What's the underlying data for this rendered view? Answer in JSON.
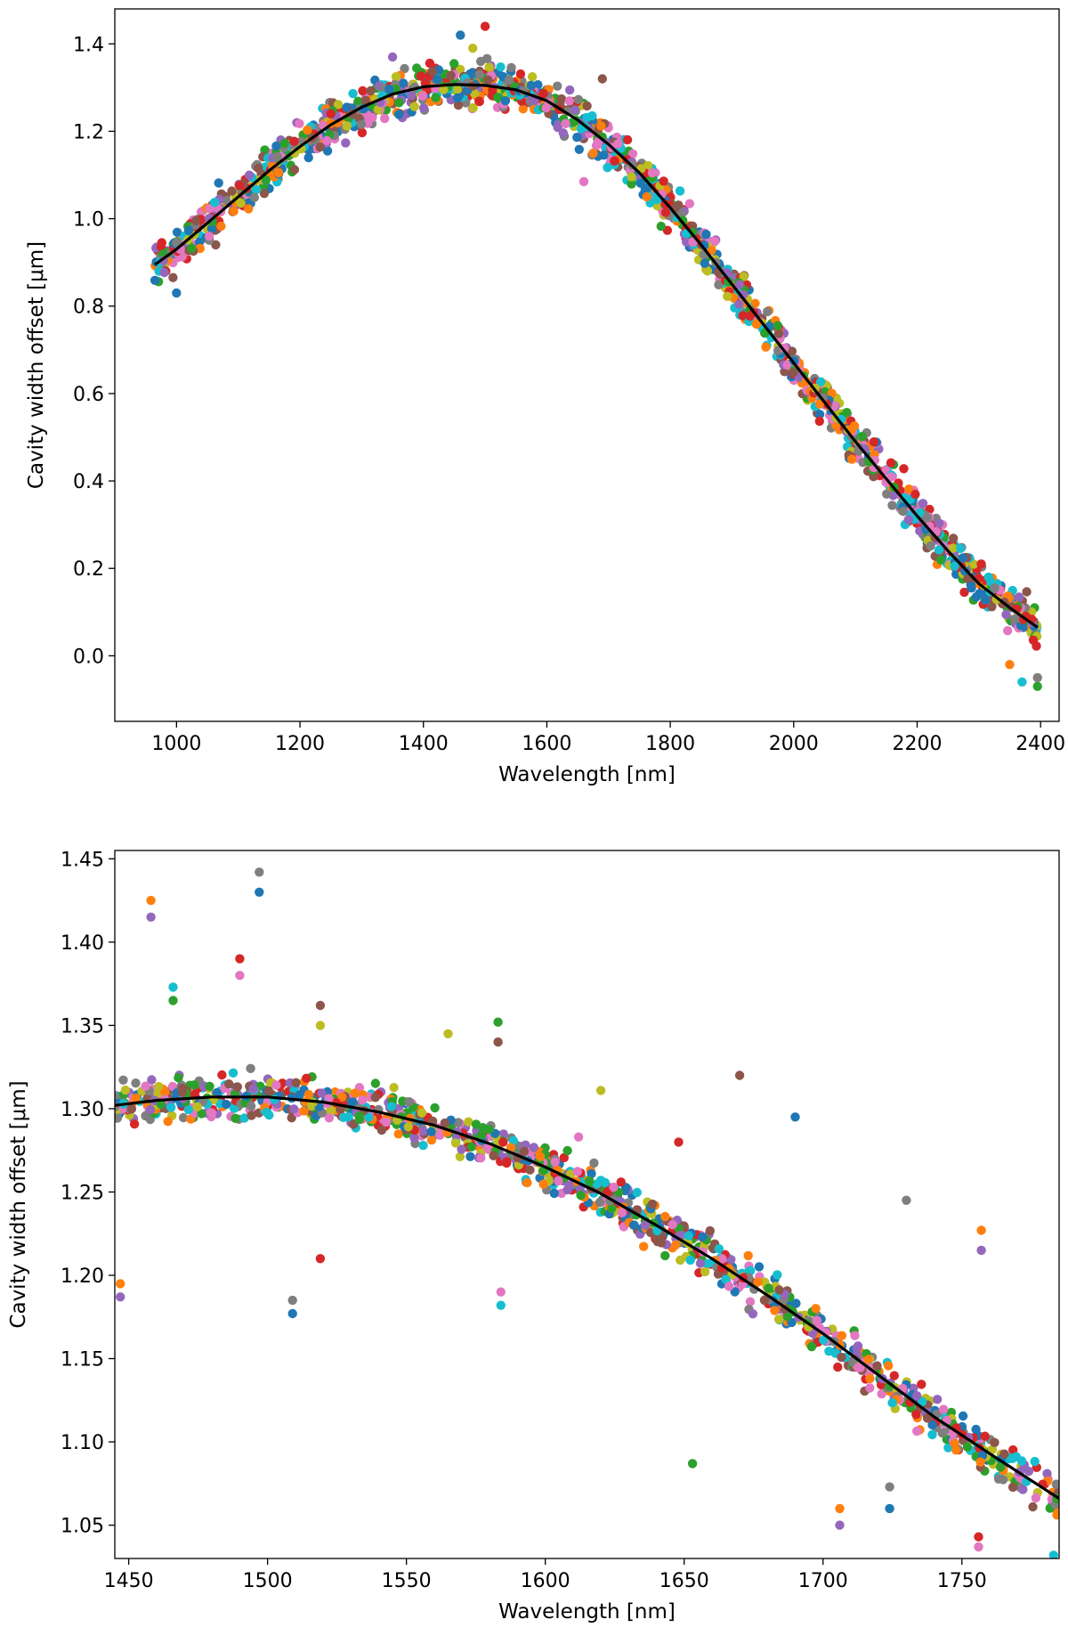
{
  "chart_data": [
    {
      "type": "scatter",
      "xlabel": "Wavelength [nm]",
      "ylabel": "Cavity width offset [μm]",
      "xlim": [
        900,
        2430
      ],
      "ylim": [
        -0.15,
        1.48
      ],
      "xticks": [
        1000,
        1200,
        1400,
        1600,
        1800,
        2000,
        2200,
        2400
      ],
      "yticks": [
        0.0,
        0.2,
        0.4,
        0.6,
        0.8,
        1.0,
        1.2,
        1.4
      ],
      "ytick_labels": [
        "0.0",
        "0.2",
        "0.4",
        "0.6",
        "0.8",
        "1.0",
        "1.2",
        "1.4"
      ],
      "grid": false,
      "fit_line": {
        "color": "#000000",
        "x": [
          965,
          1000,
          1050,
          1100,
          1150,
          1200,
          1250,
          1300,
          1350,
          1400,
          1450,
          1500,
          1550,
          1600,
          1650,
          1700,
          1750,
          1800,
          1850,
          1900,
          1950,
          2000,
          2050,
          2100,
          2150,
          2200,
          2250,
          2300,
          2350,
          2395
        ],
        "y": [
          0.895,
          0.93,
          0.99,
          1.05,
          1.11,
          1.165,
          1.215,
          1.255,
          1.285,
          1.302,
          1.307,
          1.305,
          1.295,
          1.27,
          1.226,
          1.17,
          1.105,
          1.025,
          0.94,
          0.85,
          0.76,
          0.67,
          0.58,
          0.49,
          0.405,
          0.32,
          0.24,
          0.165,
          0.11,
          0.065
        ]
      },
      "scatter": {
        "x_range": [
          965,
          2395
        ],
        "point_count": 1500,
        "seed": 11,
        "outliers": [
          {
            "x": 1460,
            "y": 1.42
          },
          {
            "x": 1500,
            "y": 1.44
          },
          {
            "x": 1660,
            "y": 1.085
          },
          {
            "x": 2370,
            "y": -0.06
          },
          {
            "x": 2395,
            "y": -0.07
          },
          {
            "x": 1690,
            "y": 1.32
          },
          {
            "x": 1480,
            "y": 1.39
          },
          {
            "x": 2350,
            "y": -0.02
          },
          {
            "x": 1350,
            "y": 1.37
          },
          {
            "x": 2395,
            "y": -0.05
          },
          {
            "x": 1000,
            "y": 0.83
          },
          {
            "x": 1250,
            "y": 1.24
          }
        ]
      }
    },
    {
      "type": "scatter",
      "xlabel": "Wavelength [nm]",
      "ylabel": "Cavity width offset [μm]",
      "xlim": [
        1445,
        1785
      ],
      "ylim": [
        1.03,
        1.455
      ],
      "xticks": [
        1450,
        1500,
        1550,
        1600,
        1650,
        1700,
        1750
      ],
      "yticks": [
        1.05,
        1.1,
        1.15,
        1.2,
        1.25,
        1.3,
        1.35,
        1.4,
        1.45
      ],
      "ytick_labels": [
        "1.05",
        "1.10",
        "1.15",
        "1.20",
        "1.25",
        "1.30",
        "1.35",
        "1.40",
        "1.45"
      ],
      "grid": false,
      "fit_line": {
        "color": "#000000",
        "x": [
          1445,
          1460,
          1480,
          1500,
          1520,
          1540,
          1560,
          1580,
          1600,
          1620,
          1640,
          1660,
          1680,
          1700,
          1720,
          1740,
          1760,
          1785
        ],
        "y": [
          1.302,
          1.305,
          1.307,
          1.307,
          1.304,
          1.298,
          1.29,
          1.279,
          1.265,
          1.249,
          1.23,
          1.21,
          1.188,
          1.165,
          1.14,
          1.115,
          1.093,
          1.066
        ]
      },
      "scatter": {
        "x_range": [
          1445,
          1785
        ],
        "point_count": 1100,
        "seed": 23,
        "outliers": [
          {
            "x": 1458,
            "y": 1.425
          },
          {
            "x": 1458,
            "y": 1.415
          },
          {
            "x": 1497,
            "y": 1.442
          },
          {
            "x": 1497,
            "y": 1.43
          },
          {
            "x": 1490,
            "y": 1.39
          },
          {
            "x": 1490,
            "y": 1.38
          },
          {
            "x": 1466,
            "y": 1.373
          },
          {
            "x": 1466,
            "y": 1.365
          },
          {
            "x": 1519,
            "y": 1.362
          },
          {
            "x": 1519,
            "y": 1.35
          },
          {
            "x": 1447,
            "y": 1.195
          },
          {
            "x": 1447,
            "y": 1.187
          },
          {
            "x": 1509,
            "y": 1.185
          },
          {
            "x": 1509,
            "y": 1.177
          },
          {
            "x": 1519,
            "y": 1.21
          },
          {
            "x": 1584,
            "y": 1.19
          },
          {
            "x": 1584,
            "y": 1.182
          },
          {
            "x": 1653,
            "y": 1.087
          },
          {
            "x": 1670,
            "y": 1.32
          },
          {
            "x": 1620,
            "y": 1.311
          },
          {
            "x": 1706,
            "y": 1.06
          },
          {
            "x": 1706,
            "y": 1.05
          },
          {
            "x": 1724,
            "y": 1.073
          },
          {
            "x": 1724,
            "y": 1.06
          },
          {
            "x": 1756,
            "y": 1.043
          },
          {
            "x": 1756,
            "y": 1.037
          },
          {
            "x": 1783,
            "y": 1.032
          },
          {
            "x": 1583,
            "y": 1.352
          },
          {
            "x": 1583,
            "y": 1.34
          },
          {
            "x": 1565,
            "y": 1.345
          },
          {
            "x": 1757,
            "y": 1.227
          },
          {
            "x": 1757,
            "y": 1.215
          },
          {
            "x": 1730,
            "y": 1.245
          },
          {
            "x": 1690,
            "y": 1.295
          },
          {
            "x": 1648,
            "y": 1.28
          },
          {
            "x": 1612,
            "y": 1.283
          }
        ]
      }
    }
  ],
  "palette": [
    "#1f77b4",
    "#ff7f0e",
    "#2ca02c",
    "#d62728",
    "#9467bd",
    "#8c564b",
    "#e377c2",
    "#7f7f7f",
    "#bcbd22",
    "#17becf"
  ]
}
